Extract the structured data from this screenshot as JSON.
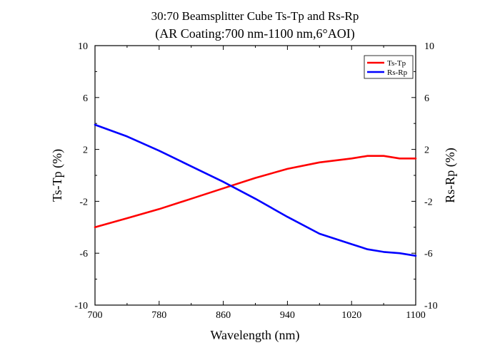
{
  "chart_data": {
    "type": "line",
    "title": "30:70 Beamsplitter Cube Ts-Tp and Rs-Rp",
    "subtitle": "(AR Coating:700 nm-1100 nm,6°AOI)",
    "xlabel": "Wavelength (nm)",
    "ylabel": "Ts-Tp (%)",
    "ylabel_right": "Rs-Rp (%)",
    "xlim": [
      700,
      1100
    ],
    "ylim": [
      -10,
      10
    ],
    "xticks": [
      "700",
      "780",
      "860",
      "940",
      "1020",
      "1100"
    ],
    "yticks": [
      "10",
      "6",
      "2",
      "-2",
      "-6",
      "-10"
    ],
    "grid": false,
    "legend_position": "top-right",
    "series": [
      {
        "name": "Ts-Tp",
        "color": "#ff0000",
        "x": [
          700,
          740,
          780,
          820,
          860,
          900,
          940,
          980,
          1020,
          1040,
          1060,
          1080,
          1100
        ],
        "y": [
          -4.0,
          -3.3,
          -2.6,
          -1.8,
          -1.0,
          -0.2,
          0.5,
          1.0,
          1.3,
          1.5,
          1.5,
          1.3,
          1.3
        ]
      },
      {
        "name": "Rs-Rp",
        "color": "#0000ff",
        "x": [
          700,
          740,
          780,
          820,
          860,
          900,
          940,
          980,
          1020,
          1040,
          1060,
          1080,
          1100
        ],
        "y": [
          3.9,
          3.0,
          1.9,
          0.7,
          -0.5,
          -1.8,
          -3.2,
          -4.5,
          -5.3,
          -5.7,
          -5.9,
          -6.0,
          -6.2
        ]
      }
    ]
  }
}
